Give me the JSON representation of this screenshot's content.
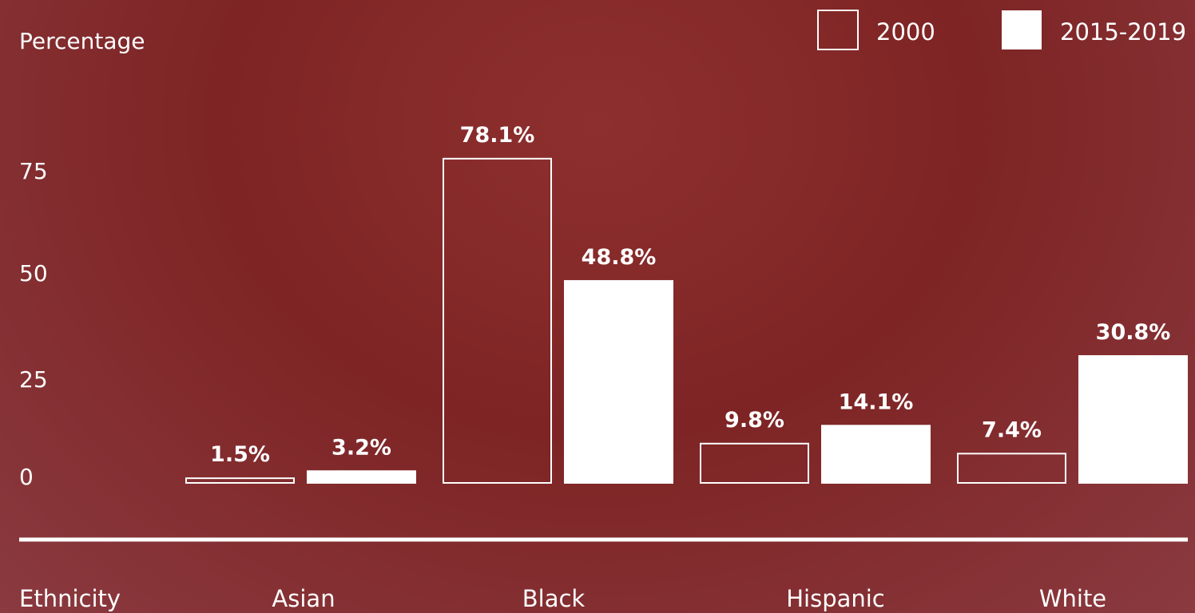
{
  "chart_data": {
    "type": "bar",
    "title": "",
    "ylabel": "Percentage",
    "xlabel": "Ethnicity",
    "categories": [
      "Asian",
      "Black",
      "Hispanic",
      "White"
    ],
    "ylim": [
      0,
      100
    ],
    "yticks": [
      0,
      25,
      50,
      75
    ],
    "grid": false,
    "legend_position": "top-right",
    "series": [
      {
        "name": "2000",
        "style": "outline",
        "values": [
          1.5,
          78.1,
          9.8,
          7.4
        ],
        "labels": [
          "1.5%",
          "78.1%",
          "9.8%",
          "7.4%"
        ]
      },
      {
        "name": "2015-2019",
        "style": "filled",
        "values": [
          3.2,
          48.8,
          14.1,
          30.8
        ],
        "labels": [
          "3.2%",
          "48.8%",
          "14.1%",
          "30.8%"
        ]
      }
    ],
    "colors": {
      "background": "#7e2424",
      "foreground": "#ffffff"
    }
  }
}
